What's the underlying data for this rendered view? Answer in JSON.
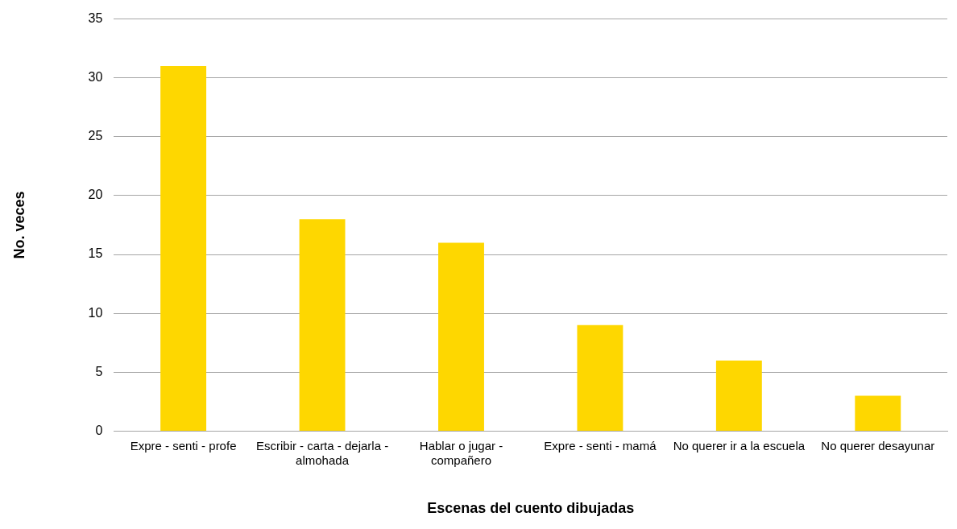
{
  "chart_data": {
    "type": "bar",
    "xlabel": "Escenas del cuento dibujadas",
    "ylabel": "No. veces",
    "categories": [
      "Expre - senti - profe",
      "Escribir - carta - dejarla - almohada",
      "Hablar o jugar - compañero",
      "Expre - senti - mamá",
      "No querer ir a la escuela",
      "No querer desayunar"
    ],
    "values": [
      31,
      18,
      16,
      9,
      6,
      3
    ],
    "color": "#fed700",
    "ylim": [
      0,
      35
    ],
    "yticks": [
      0,
      5,
      10,
      15,
      20,
      25,
      30,
      35
    ],
    "grid": "y",
    "legend": false
  }
}
